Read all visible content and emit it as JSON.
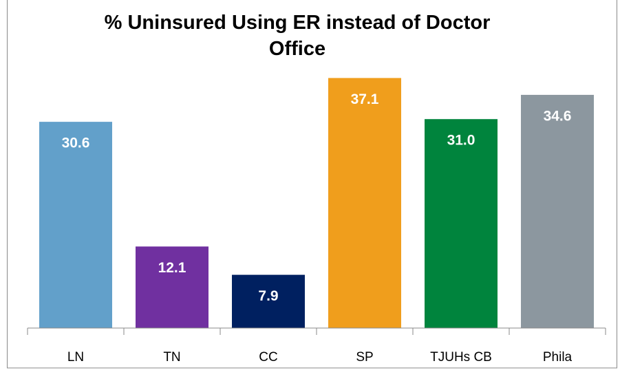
{
  "chart_data": {
    "type": "bar",
    "title": "% Uninsured Using ER instead of Doctor Office",
    "categories": [
      "LN",
      "TN",
      "CC",
      "SP",
      "TJUHs CB",
      "Phila"
    ],
    "values": [
      30.6,
      12.1,
      7.9,
      37.1,
      31.0,
      34.6
    ],
    "value_labels": [
      "30.6",
      "12.1",
      "7.9",
      "37.1",
      "31.0",
      "34.6"
    ],
    "colors": [
      "#62a0ca",
      "#7030a0",
      "#002060",
      "#f09e1c",
      "#00843d",
      "#8c979f"
    ],
    "ylim": [
      0,
      40
    ]
  }
}
